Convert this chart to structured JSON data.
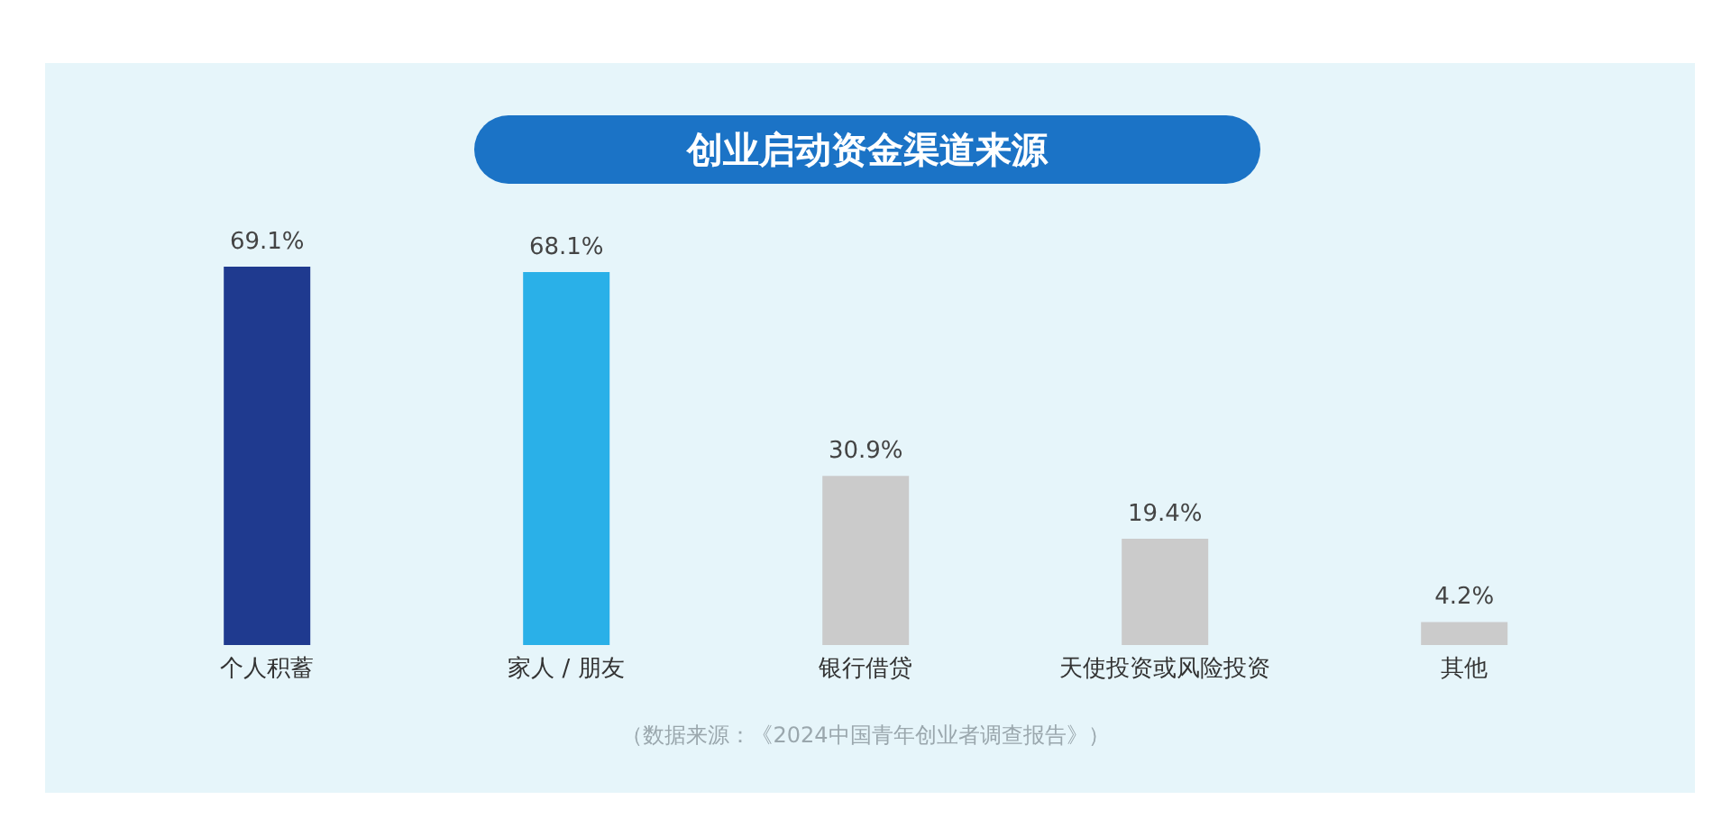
{
  "chart_data": {
    "type": "bar",
    "title": "创业启动资金渠道来源",
    "categories": [
      "个人积蓄",
      "家人 / 朋友",
      "银行借贷",
      "天使投资或风险投资",
      "其他"
    ],
    "values": [
      69.1,
      68.1,
      30.9,
      19.4,
      4.2
    ],
    "value_labels": [
      "69.1%",
      "68.1%",
      "30.9%",
      "19.4%",
      "4.2%"
    ],
    "colors": [
      "#1f3a8f",
      "#2ab0e8",
      "#cbcbcb",
      "#cbcbcb",
      "#cbcbcb"
    ],
    "annotations": [
      "（数据来源：《2024中国青年创业者调查报告》）"
    ]
  }
}
